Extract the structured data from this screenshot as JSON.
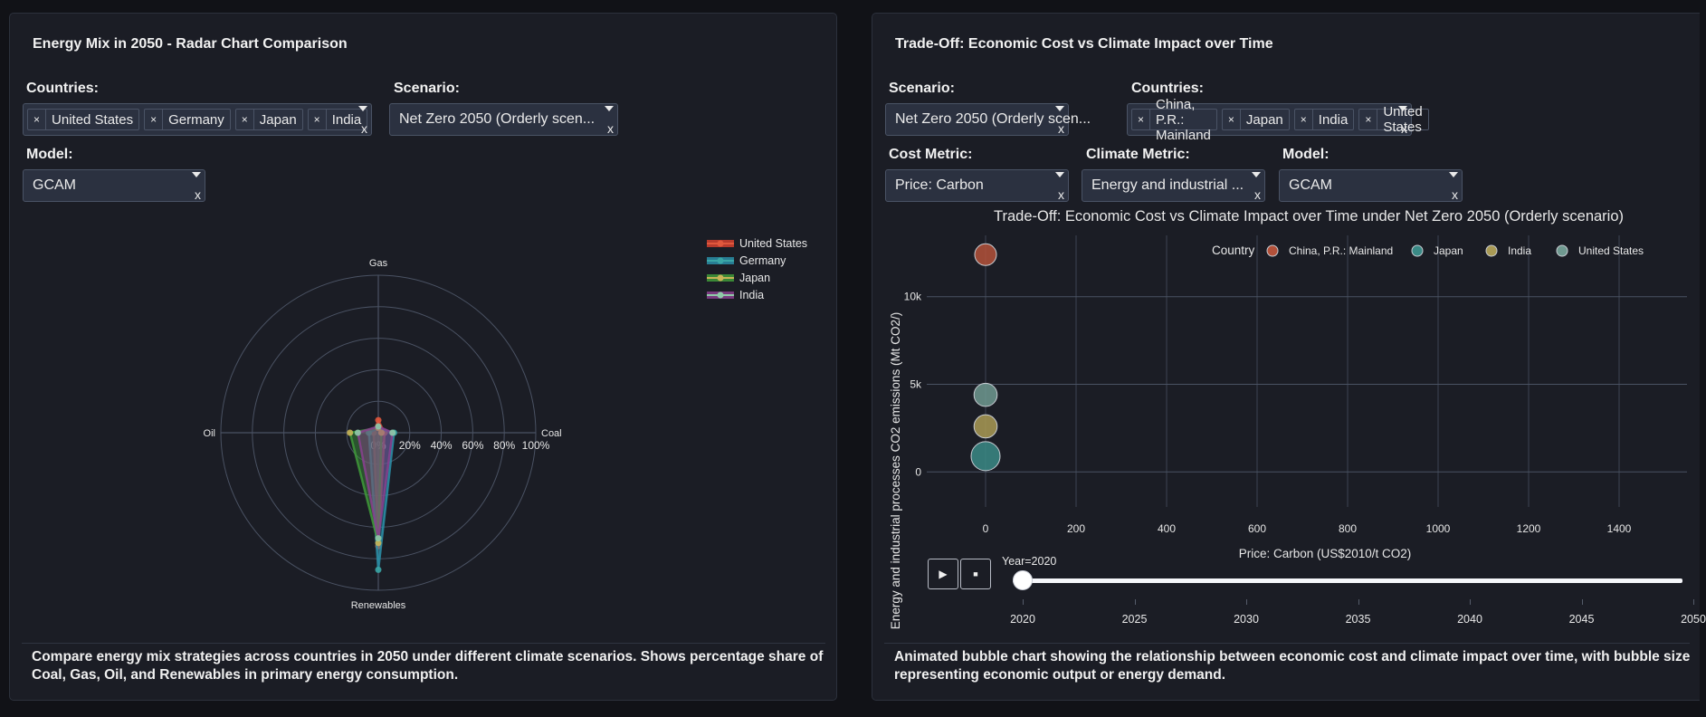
{
  "left_panel": {
    "title": "Energy Mix in 2050 - Radar Chart Comparison",
    "countries_label": "Countries:",
    "countries_selected": [
      "United States",
      "Germany",
      "Japan",
      "India"
    ],
    "scenario_label": "Scenario:",
    "scenario_value": "Net Zero 2050 (Orderly scen...",
    "model_label": "Model:",
    "model_value": "GCAM",
    "clear_glyph": "x",
    "remove_glyph": "×",
    "description": "Compare energy mix strategies across countries in 2050 under different climate scenarios. Shows percentage share of Coal, Gas, Oil, and Renewables in primary energy consumption."
  },
  "right_panel": {
    "title": "Trade-Off: Economic Cost vs Climate Impact over Time",
    "scenario_label": "Scenario:",
    "scenario_value": "Net Zero 2050 (Orderly scen...",
    "countries_label": "Countries:",
    "countries_selected": [
      "China, P.R.: Mainland",
      "Japan",
      "India",
      "United States"
    ],
    "cost_metric_label": "Cost Metric:",
    "cost_metric_value": "Price: Carbon",
    "climate_metric_label": "Climate Metric:",
    "climate_metric_value": "Energy and industrial ...",
    "model_label": "Model:",
    "model_value": "GCAM",
    "clear_glyph": "x",
    "remove_glyph": "×",
    "play_icon": "▶",
    "stop_icon": "■",
    "slider_label": "Year=2020",
    "slider_value": 2020,
    "slider_range": [
      2020,
      2050
    ],
    "slider_ticks": [
      "2020",
      "2025",
      "2030",
      "2035",
      "2040",
      "2045",
      "2050"
    ],
    "description": "Animated bubble chart showing the relationship between economic cost and climate impact over time, with bubble size representing economic output or energy demand."
  },
  "chart_data": [
    {
      "type": "radar",
      "title": "Energy Mix in 2050 - Radar Chart Comparison",
      "axes": [
        "Gas",
        "Coal",
        "Renewables",
        "Oil"
      ],
      "radial_ticks": [
        "0%",
        "20%",
        "40%",
        "60%",
        "80%",
        "100%"
      ],
      "radial_range": [
        0,
        100
      ],
      "legend_position": "top-right",
      "series": [
        {
          "name": "United States",
          "color": "#d2412f",
          "values": {
            "Gas": 8,
            "Coal": 4,
            "Renewables": 72,
            "Oil": 3
          }
        },
        {
          "name": "Germany",
          "color": "#2a8fa8",
          "values": {
            "Gas": 3,
            "Coal": 10,
            "Renewables": 87,
            "Oil": 6
          }
        },
        {
          "name": "Japan",
          "color": "#3f9a3a",
          "values": {
            "Gas": 3,
            "Coal": 2,
            "Renewables": 70,
            "Oil": 18
          }
        },
        {
          "name": "India",
          "color": "#8a3f8f",
          "values": {
            "Gas": 4,
            "Coal": 9,
            "Renewables": 67,
            "Oil": 13
          }
        }
      ],
      "marker_colors": {
        "United States": "#e0583d",
        "Germany": "#3aa6a6",
        "Japan": "#c9b458",
        "India": "#8fc9a8"
      }
    },
    {
      "type": "scatter",
      "title": "Trade-Off: Economic Cost vs Climate Impact over Time under Net Zero 2050 (Orderly scenario)",
      "xlabel": "Price: Carbon (US$2010/t CO2)",
      "ylabel": "Energy and industrial processes CO2 emissions (Mt CO2/)",
      "xlim": [
        -130,
        1550
      ],
      "ylim": [
        -2000,
        13500
      ],
      "xticks": [
        "0",
        "200",
        "400",
        "600",
        "800",
        "1000",
        "1200",
        "1400"
      ],
      "xtick_values": [
        0,
        200,
        400,
        600,
        800,
        1000,
        1200,
        1400
      ],
      "yticks": [
        "0",
        "5k",
        "10k"
      ],
      "ytick_values": [
        0,
        5000,
        10000
      ],
      "grid": true,
      "legend_title": "Country",
      "legend_position": "top-right",
      "frame": "Year=2020",
      "series": [
        {
          "name": "China, P.R.: Mainland",
          "color": "#b3513a",
          "x": 0,
          "y": 12400,
          "size": 0.75
        },
        {
          "name": "Japan",
          "color": "#3a8a86",
          "x": 0,
          "y": 900,
          "size": 1.0
        },
        {
          "name": "India",
          "color": "#a99a55",
          "x": 0,
          "y": 2600,
          "size": 0.8
        },
        {
          "name": "United States",
          "color": "#6f9990",
          "x": 0,
          "y": 4400,
          "size": 0.8
        }
      ]
    }
  ]
}
